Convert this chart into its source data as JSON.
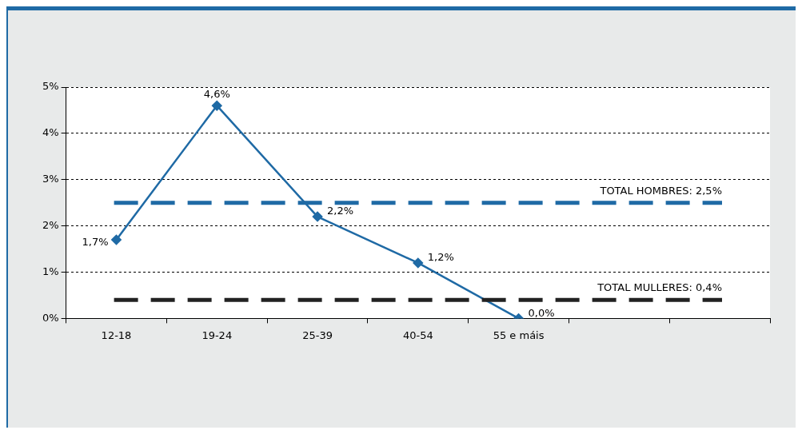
{
  "chart_data": {
    "type": "line",
    "categories": [
      "12-18",
      "19-24",
      "25-39",
      "40-54",
      "55 e máis",
      null,
      null
    ],
    "series": [
      {
        "color": "#1f6aa5",
        "values": [
          1.7,
          4.6,
          2.2,
          1.2,
          0.0,
          null,
          null
        ],
        "value_labels": [
          "1,7%",
          "4,6%",
          "2,2%",
          "1,2%",
          "0,0%",
          null,
          null
        ]
      }
    ],
    "ylim": [
      0,
      5
    ],
    "yticks": [
      {
        "value": 0,
        "label": "0%"
      },
      {
        "value": 1,
        "label": "1%"
      },
      {
        "value": 2,
        "label": "2%"
      },
      {
        "value": 3,
        "label": "3%"
      },
      {
        "value": 4,
        "label": "4%"
      },
      {
        "value": 5,
        "label": "5%"
      }
    ],
    "ref_lines": [
      {
        "axis": "y",
        "value": 2.5,
        "label": "TOTAL HOMBRES: 2,5%",
        "color": "#1f6aa5",
        "line_style": "dashed"
      },
      {
        "axis": "y",
        "value": 0.4,
        "label": "TOTAL MULLERES: 0,4%",
        "color": "#222222",
        "line_style": "dashed"
      }
    ],
    "grid": "y",
    "legend": false,
    "marker": "diamond",
    "line_style": "solid"
  }
}
